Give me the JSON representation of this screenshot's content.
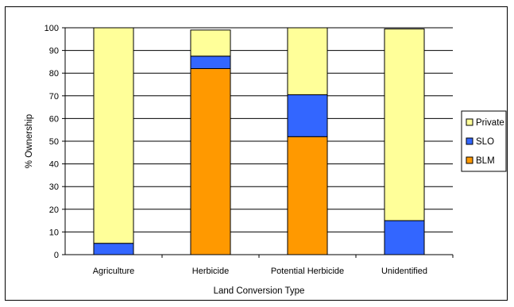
{
  "chart_data": {
    "type": "bar",
    "stacked": true,
    "title": "",
    "xlabel": "Land Conversion Type",
    "ylabel": "% Ownership",
    "ylim": [
      0,
      100
    ],
    "yticks": [
      0,
      10,
      20,
      30,
      40,
      50,
      60,
      70,
      80,
      90,
      100
    ],
    "grid": true,
    "legend_position": "right",
    "categories": [
      "Agriculture",
      "Herbicide",
      "Potential Herbicide",
      "Unidentified"
    ],
    "series": [
      {
        "name": "BLM",
        "color": "#ff9900",
        "values": [
          0,
          82,
          52,
          0
        ]
      },
      {
        "name": "SLO",
        "color": "#3366ff",
        "values": [
          5,
          5.5,
          18.5,
          15
        ]
      },
      {
        "name": "Private",
        "color": "#ffff99",
        "values": [
          95,
          11.5,
          29.5,
          84.5
        ]
      }
    ],
    "legend_order": [
      "Private",
      "SLO",
      "BLM"
    ]
  }
}
